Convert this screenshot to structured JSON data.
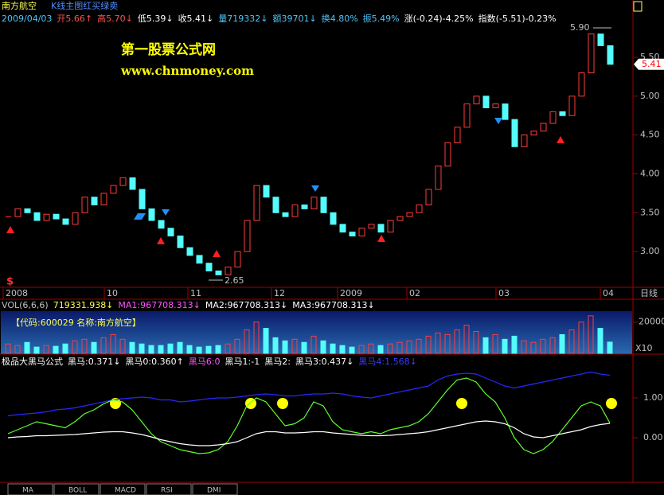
{
  "title": {
    "name": "南方航空",
    "subtitle": "K线主图红买绿卖"
  },
  "quote": [
    {
      "text": "2009/04/03",
      "color": "#4fc3f7"
    },
    {
      "text": "开5.66↑",
      "color": "#ff5050"
    },
    {
      "text": "高5.70↓",
      "color": "#ff5050"
    },
    {
      "text": "低5.39↓",
      "color": "#ffffff"
    },
    {
      "text": "收5.41↓",
      "color": "#ffffff"
    },
    {
      "text": "量719332↓",
      "color": "#4fc3f7"
    },
    {
      "text": "额39701↓",
      "color": "#4fc3f7"
    },
    {
      "text": "换4.80%",
      "color": "#4fc3f7"
    },
    {
      "text": "振5.49%",
      "color": "#4fc3f7"
    },
    {
      "text": "涨(-0.24)-4.25%",
      "color": "#ffffff"
    },
    {
      "text": "指数(-5.51)-0.23%",
      "color": "#ffffff"
    }
  ],
  "watermark": [
    "第一股票公式网",
    "www.chnmoney.com"
  ],
  "price": {
    "ylim": [
      2.55,
      5.91
    ],
    "yticks": [
      {
        "value": 5.5,
        "label": "5.50"
      },
      {
        "value": 5,
        "label": "5.00"
      },
      {
        "value": 4.5,
        "label": "4.50"
      },
      {
        "value": 4,
        "label": "4.00"
      },
      {
        "value": 3.5,
        "label": "3.50"
      },
      {
        "value": 3,
        "label": "3.00"
      }
    ],
    "last": "5.41",
    "high_label": "5.90",
    "low_label": "2.65",
    "up_color": "#ff3c3c",
    "down_color": "#54fcfc",
    "close": [
      3.45,
      3.55,
      3.5,
      3.4,
      3.48,
      3.42,
      3.35,
      3.5,
      3.7,
      3.6,
      3.75,
      3.85,
      3.95,
      3.8,
      3.55,
      3.4,
      3.3,
      3.2,
      3.05,
      2.95,
      2.85,
      2.75,
      2.7,
      2.8,
      3.0,
      3.4,
      3.85,
      3.7,
      3.5,
      3.45,
      3.6,
      3.55,
      3.7,
      3.5,
      3.35,
      3.25,
      3.2,
      3.3,
      3.35,
      3.25,
      3.4,
      3.45,
      3.5,
      3.6,
      3.8,
      4.1,
      4.4,
      4.6,
      4.9,
      5.0,
      4.85,
      4.9,
      4.7,
      4.35,
      4.5,
      4.55,
      4.65,
      4.8,
      4.75,
      5.0,
      5.3,
      5.8,
      5.65,
      5.41
    ]
  },
  "dates": [
    "2008",
    "10",
    "11",
    "12",
    "2009",
    "02",
    "03",
    "04"
  ],
  "period": "日线",
  "signal": "$",
  "volume": {
    "header": [
      {
        "text": "VOL(6,6,6)",
        "color": "#c0c0c0"
      },
      {
        "text": "719331.938↓",
        "color": "#ffff54"
      },
      {
        "text": "MA1:967708.313↓",
        "color": "#ff54ff"
      },
      {
        "text": "MA2:967708.313↓",
        "color": "#ffffff"
      },
      {
        "text": "MA3:967708.313↓",
        "color": "#ffffff"
      }
    ],
    "info": "【代码:600029 名称:南方航空】",
    "scale_label": "X10",
    "ylim": [
      0,
      270000
    ],
    "yticks": [
      200000
    ],
    "values": [
      60000,
      50000,
      70000,
      40000,
      50000,
      45000,
      60000,
      80000,
      90000,
      70000,
      100000,
      120000,
      90000,
      70000,
      60000,
      50000,
      50000,
      60000,
      70000,
      50000,
      40000,
      45000,
      50000,
      60000,
      90000,
      150000,
      200000,
      160000,
      100000,
      80000,
      90000,
      70000,
      110000,
      80000,
      60000,
      50000,
      40000,
      50000,
      60000,
      50000,
      60000,
      70000,
      80000,
      90000,
      110000,
      130000,
      120000,
      150000,
      180000,
      140000,
      100000,
      120000,
      90000,
      110000,
      80000,
      70000,
      90000,
      100000,
      120000,
      150000,
      200000,
      240000,
      160000,
      72000
    ]
  },
  "indicator": {
    "header": [
      {
        "text": "极品大黑马公式",
        "color": "#ffffff"
      },
      {
        "text": "黑马:0.371↓",
        "color": "#ffffff"
      },
      {
        "text": "黑马0:0.360↑",
        "color": "#ffffff"
      },
      {
        "text": "黑马6:0",
        "color": "#ff54ff"
      },
      {
        "text": "黑马1:-1",
        "color": "#ffffff"
      },
      {
        "text": "黑马2:",
        "color": "#ffffff"
      },
      {
        "text": "黑马3:0.437↓",
        "color": "#ffffff"
      },
      {
        "text": "黑马4:1.568↓",
        "color": "#3c3cff"
      }
    ],
    "ylim": [
      -1.1,
      1.76
    ],
    "yticks": [
      {
        "value": 1,
        "label": "1.00"
      },
      {
        "value": 0,
        "label": "0.00"
      }
    ],
    "series": [
      {
        "color": "#2828ff",
        "values": [
          0.55,
          0.58,
          0.6,
          0.62,
          0.65,
          0.7,
          0.72,
          0.75,
          0.8,
          0.85,
          0.9,
          0.95,
          0.98,
          1.0,
          1.02,
          1.0,
          0.95,
          0.95,
          0.9,
          0.92,
          0.95,
          0.98,
          1.0,
          1.0,
          1.02,
          1.05,
          1.08,
          1.1,
          1.08,
          1.05,
          1.05,
          1.08,
          1.1,
          1.1,
          1.12,
          1.1,
          1.05,
          1.02,
          1.0,
          1.05,
          1.1,
          1.15,
          1.2,
          1.25,
          1.3,
          1.45,
          1.55,
          1.6,
          1.62,
          1.6,
          1.5,
          1.4,
          1.3,
          1.25,
          1.3,
          1.35,
          1.4,
          1.45,
          1.5,
          1.55,
          1.6,
          1.65,
          1.6,
          1.57
        ]
      },
      {
        "color": "#60ff30",
        "values": [
          0.1,
          0.2,
          0.3,
          0.4,
          0.35,
          0.3,
          0.25,
          0.4,
          0.6,
          0.7,
          0.85,
          0.95,
          0.9,
          0.7,
          0.4,
          0.1,
          -0.1,
          -0.2,
          -0.3,
          -0.35,
          -0.4,
          -0.38,
          -0.3,
          -0.1,
          0.3,
          0.8,
          1.0,
          0.9,
          0.6,
          0.3,
          0.35,
          0.5,
          0.9,
          0.8,
          0.4,
          0.2,
          0.15,
          0.1,
          0.15,
          0.1,
          0.2,
          0.25,
          0.3,
          0.4,
          0.6,
          0.9,
          1.2,
          1.45,
          1.5,
          1.4,
          1.1,
          0.9,
          0.5,
          0.0,
          -0.3,
          -0.4,
          -0.3,
          -0.1,
          0.2,
          0.5,
          0.8,
          0.9,
          0.8,
          0.37
        ]
      },
      {
        "color": "#ffffff",
        "values": [
          0.0,
          0.02,
          0.03,
          0.05,
          0.05,
          0.06,
          0.07,
          0.08,
          0.1,
          0.12,
          0.14,
          0.15,
          0.15,
          0.12,
          0.08,
          0.02,
          -0.05,
          -0.1,
          -0.15,
          -0.18,
          -0.2,
          -0.2,
          -0.18,
          -0.15,
          -0.1,
          0.0,
          0.1,
          0.15,
          0.15,
          0.12,
          0.12,
          0.13,
          0.15,
          0.15,
          0.12,
          0.1,
          0.08,
          0.06,
          0.05,
          0.05,
          0.06,
          0.08,
          0.1,
          0.12,
          0.15,
          0.2,
          0.25,
          0.3,
          0.35,
          0.4,
          0.42,
          0.4,
          0.35,
          0.25,
          0.1,
          0.02,
          0.0,
          0.05,
          0.1,
          0.15,
          0.2,
          0.28,
          0.33,
          0.36
        ]
      }
    ]
  },
  "tabs": [
    "MA",
    "BOLL",
    "MACD",
    "RSI",
    "DMI"
  ]
}
